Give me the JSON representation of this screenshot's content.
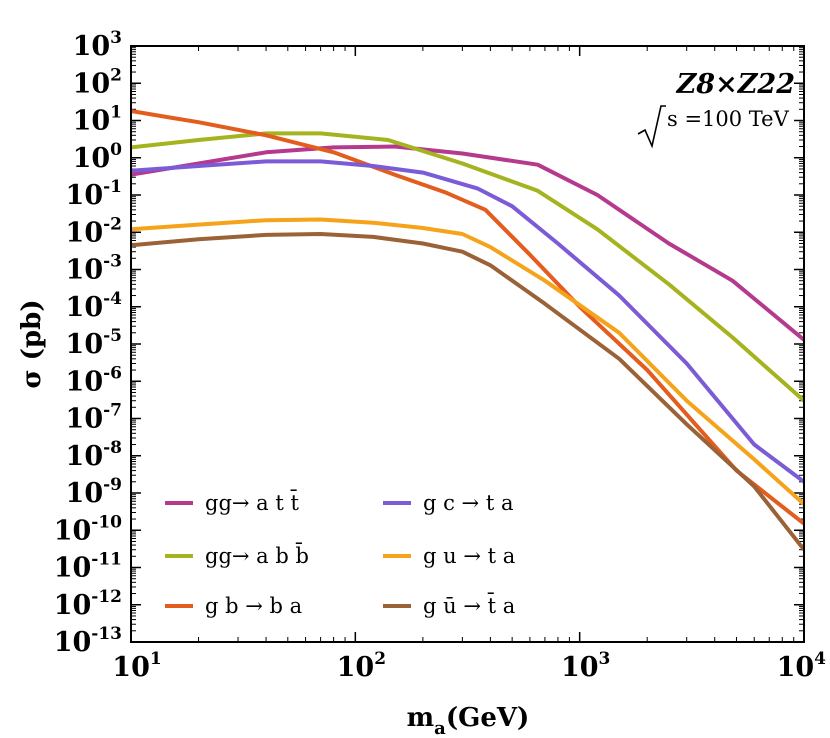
{
  "chart_data": {
    "type": "line",
    "xlabel": "m_a(GeV)",
    "xlabel_main": "m",
    "xlabel_sub": "a",
    "xlabel_rest": "(GeV)",
    "ylabel": "σ (pb)",
    "x_scale": "log",
    "y_scale": "log",
    "xlim": [
      10,
      10000
    ],
    "ylim": [
      1e-13,
      1000
    ],
    "x_ticks": [
      {
        "base": "10",
        "exp": "1",
        "value": 10
      },
      {
        "base": "10",
        "exp": "2",
        "value": 100
      },
      {
        "base": "10",
        "exp": "3",
        "value": 1000
      },
      {
        "base": "10",
        "exp": "4",
        "value": 10000
      }
    ],
    "y_ticks": [
      {
        "base": "10",
        "exp": "3",
        "value": 1000.0
      },
      {
        "base": "10",
        "exp": "2",
        "value": 100.0
      },
      {
        "base": "10",
        "exp": "1",
        "value": 10.0
      },
      {
        "base": "10",
        "exp": "0",
        "value": 1.0
      },
      {
        "base": "10",
        "exp": "-1",
        "value": 0.1
      },
      {
        "base": "10",
        "exp": "-2",
        "value": 0.01
      },
      {
        "base": "10",
        "exp": "-3",
        "value": 0.001
      },
      {
        "base": "10",
        "exp": "-4",
        "value": 0.0001
      },
      {
        "base": "10",
        "exp": "-5",
        "value": 1e-05
      },
      {
        "base": "10",
        "exp": "-6",
        "value": 1e-06
      },
      {
        "base": "10",
        "exp": "-7",
        "value": 1e-07
      },
      {
        "base": "10",
        "exp": "-8",
        "value": 1e-08
      },
      {
        "base": "10",
        "exp": "-9",
        "value": 1e-09
      },
      {
        "base": "10",
        "exp": "-10",
        "value": 1e-10
      },
      {
        "base": "10",
        "exp": "-11",
        "value": 1e-11
      },
      {
        "base": "10",
        "exp": "-12",
        "value": 1e-12
      },
      {
        "base": "10",
        "exp": "-13",
        "value": 1e-13
      }
    ],
    "grid": false,
    "legend_position": "bottom-left",
    "annotation": {
      "title": "Z8×Z22",
      "energy_label": "s =100 TeV"
    },
    "series": [
      {
        "name": "gg→ a t t̄",
        "color": "#b5398d",
        "x": [
          10,
          20,
          40,
          80,
          150,
          300,
          650,
          1200,
          2500,
          4800,
          10000
        ],
        "y": [
          0.35,
          0.7,
          1.4,
          1.9,
          2.0,
          1.3,
          0.65,
          0.1,
          0.005,
          0.0005,
          1.3e-05
        ]
      },
      {
        "name": "gg→ a b b̄",
        "color": "#a5b31e",
        "x": [
          10,
          20,
          40,
          70,
          140,
          300,
          650,
          1200,
          2500,
          4800,
          10000
        ],
        "y": [
          1.9,
          3.0,
          4.5,
          4.5,
          3.0,
          0.7,
          0.13,
          0.012,
          0.0004,
          1.5e-05,
          3e-07
        ]
      },
      {
        "name": "g b → b a",
        "color": "#e35d1e",
        "x": [
          10,
          15,
          20,
          40,
          80,
          150,
          250,
          380,
          600,
          1000,
          2000,
          5000,
          10000
        ],
        "y": [
          18,
          12,
          9,
          4,
          1.4,
          0.35,
          0.12,
          0.04,
          0.0025,
          0.0001,
          2e-06,
          4e-09,
          1.5e-10
        ]
      },
      {
        "name": "g c → t a",
        "color": "#7b5bd6",
        "x": [
          10,
          20,
          40,
          70,
          120,
          200,
          350,
          500,
          800,
          1500,
          3000,
          6000,
          10000
        ],
        "y": [
          0.45,
          0.6,
          0.8,
          0.8,
          0.6,
          0.4,
          0.15,
          0.05,
          0.005,
          0.0002,
          3e-06,
          2e-08,
          2e-09
        ]
      },
      {
        "name": "g u → t a",
        "color": "#f5a31a",
        "x": [
          10,
          20,
          40,
          70,
          120,
          200,
          300,
          400,
          700,
          1500,
          3000,
          6000,
          10000
        ],
        "y": [
          0.012,
          0.016,
          0.021,
          0.022,
          0.018,
          0.013,
          0.009,
          0.004,
          0.0005,
          2e-05,
          3e-07,
          8e-09,
          5e-10
        ]
      },
      {
        "name": "g ū → t̄ a",
        "color": "#9a6236",
        "x": [
          10,
          20,
          40,
          70,
          120,
          200,
          300,
          400,
          700,
          1500,
          3000,
          6000,
          10000
        ],
        "y": [
          0.0045,
          0.0065,
          0.0085,
          0.009,
          0.0075,
          0.005,
          0.003,
          0.0013,
          0.00012,
          4e-06,
          7e-08,
          1.5e-09,
          3e-11
        ]
      }
    ]
  }
}
